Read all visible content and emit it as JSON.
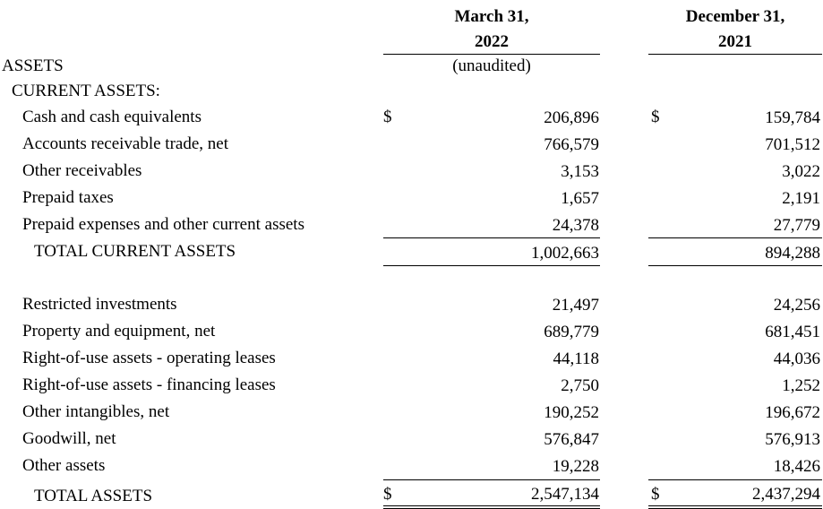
{
  "columns": {
    "col1": {
      "line1": "March 31,",
      "line2": "2022",
      "note": "(unaudited)"
    },
    "col2": {
      "line1": "December 31,",
      "line2": "2021"
    }
  },
  "section_title": "ASSETS",
  "subsection_title": "CURRENT ASSETS:",
  "currency_symbol": "$",
  "current_assets": [
    {
      "label": "Cash and cash equivalents",
      "v1": "206,896",
      "v2": "159,784"
    },
    {
      "label": "Accounts receivable trade, net",
      "v1": "766,579",
      "v2": "701,512"
    },
    {
      "label": "Other receivables",
      "v1": "3,153",
      "v2": "3,022"
    },
    {
      "label": "Prepaid taxes",
      "v1": "1,657",
      "v2": "2,191"
    },
    {
      "label": "Prepaid expenses and other current assets",
      "v1": "24,378",
      "v2": "27,779"
    }
  ],
  "total_current_assets": {
    "label": "TOTAL CURRENT ASSETS",
    "v1": "1,002,663",
    "v2": "894,288"
  },
  "other_assets": [
    {
      "label": "Restricted investments",
      "v1": "21,497",
      "v2": "24,256"
    },
    {
      "label": "Property and equipment, net",
      "v1": "689,779",
      "v2": "681,451"
    },
    {
      "label": "Right-of-use assets - operating leases",
      "v1": "44,118",
      "v2": "44,036"
    },
    {
      "label": "Right-of-use assets - financing leases",
      "v1": "2,750",
      "v2": "1,252"
    },
    {
      "label": "Other intangibles, net",
      "v1": "190,252",
      "v2": "196,672"
    },
    {
      "label": "Goodwill, net",
      "v1": "576,847",
      "v2": "576,913"
    },
    {
      "label": "Other assets",
      "v1": "19,228",
      "v2": "18,426"
    }
  ],
  "total_assets": {
    "label": "TOTAL ASSETS",
    "v1": "2,547,134",
    "v2": "2,437,294"
  }
}
